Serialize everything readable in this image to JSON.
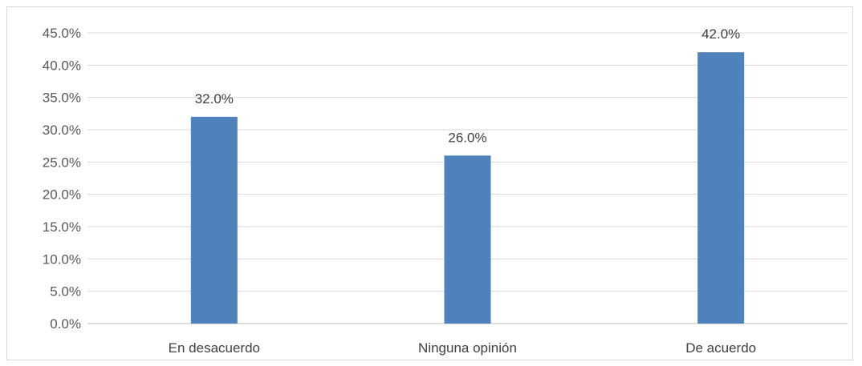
{
  "chart_data": {
    "type": "bar",
    "categories": [
      "En desacuerdo",
      "Ninguna opinión",
      "De acuerdo"
    ],
    "values": [
      32.0,
      26.0,
      42.0
    ],
    "data_labels": [
      "32.0%",
      "26.0%",
      "42.0%"
    ],
    "yticks": [
      "0.0%",
      "5.0%",
      "10.0%",
      "15.0%",
      "20.0%",
      "25.0%",
      "30.0%",
      "35.0%",
      "40.0%",
      "45.0%"
    ],
    "ylim": [
      0,
      45
    ],
    "grid": true,
    "legend": "none",
    "bar_color": "#4f81bd",
    "grid_color": "#d9d9d9"
  }
}
